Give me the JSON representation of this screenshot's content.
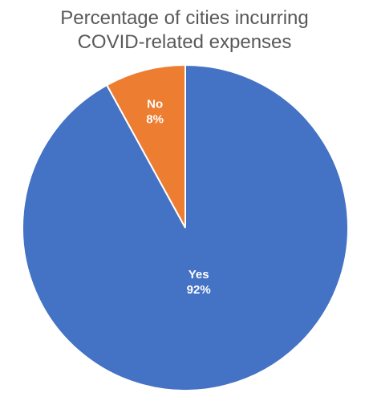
{
  "chart_data": {
    "type": "pie",
    "title": [
      "Percentage of cities incurring",
      "COVID-related expenses"
    ],
    "categories": [
      "Yes",
      "No"
    ],
    "values": [
      92,
      8
    ],
    "labels": [
      "92%",
      "8%"
    ],
    "colors": [
      "#4472C4",
      "#ED7D31"
    ],
    "legend": "none"
  }
}
